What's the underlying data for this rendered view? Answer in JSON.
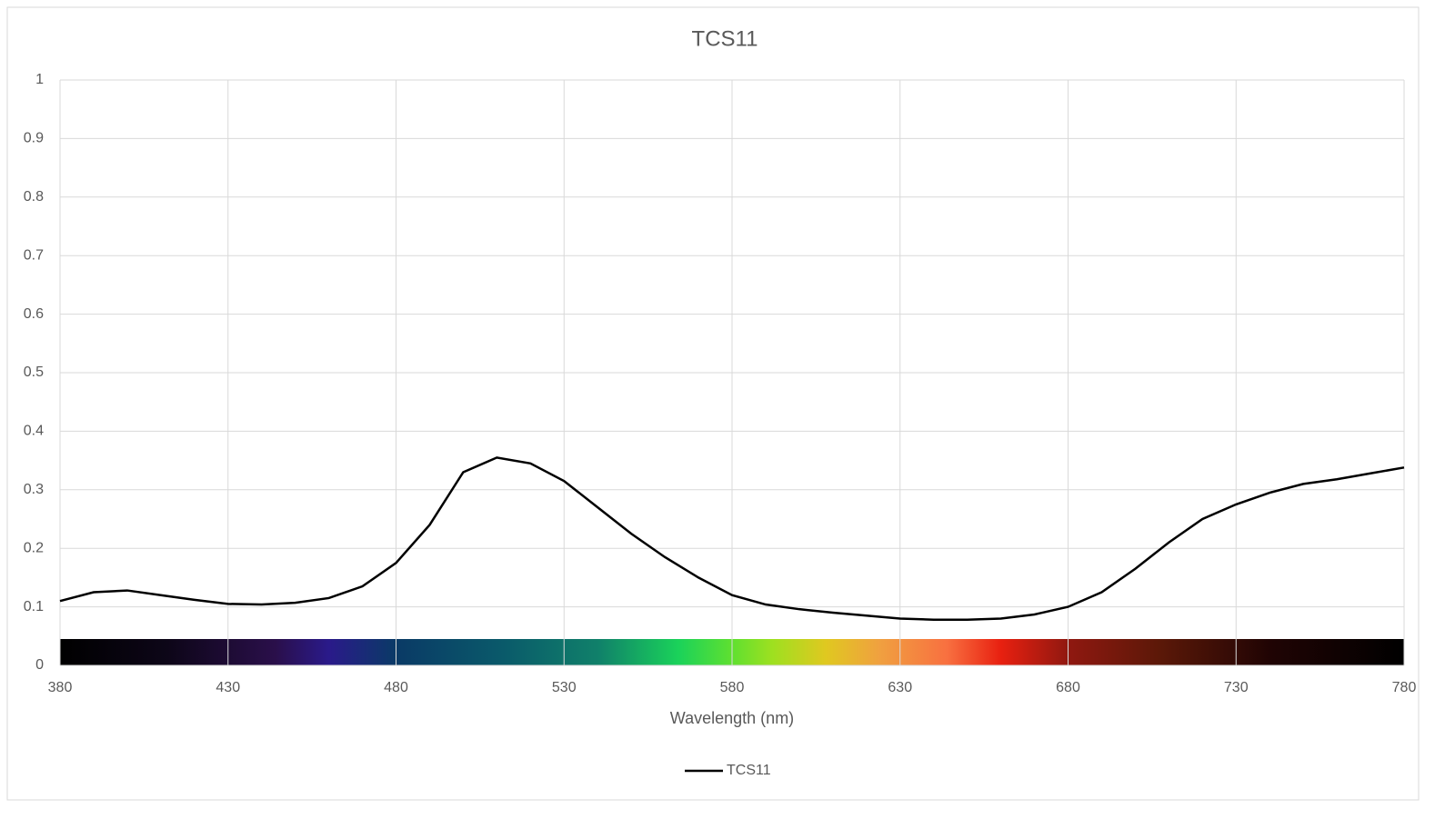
{
  "chart_data": {
    "type": "line",
    "title": "TCS11",
    "x_label": "Wavelength (nm)",
    "x": [
      380,
      390,
      400,
      410,
      420,
      430,
      440,
      450,
      460,
      470,
      480,
      490,
      500,
      510,
      520,
      530,
      540,
      550,
      560,
      570,
      580,
      590,
      600,
      610,
      620,
      630,
      640,
      650,
      660,
      670,
      680,
      690,
      700,
      710,
      720,
      730,
      740,
      750,
      760,
      770,
      780
    ],
    "series": [
      {
        "name": "TCS11",
        "color": "#000000",
        "values": [
          0.11,
          0.125,
          0.128,
          0.12,
          0.112,
          0.105,
          0.104,
          0.107,
          0.115,
          0.135,
          0.175,
          0.24,
          0.33,
          0.355,
          0.345,
          0.315,
          0.27,
          0.225,
          0.185,
          0.15,
          0.12,
          0.104,
          0.096,
          0.09,
          0.085,
          0.08,
          0.078,
          0.078,
          0.08,
          0.087,
          0.1,
          0.125,
          0.165,
          0.21,
          0.25,
          0.275,
          0.295,
          0.31,
          0.318,
          0.328,
          0.338
        ]
      }
    ],
    "xlim": [
      380,
      780
    ],
    "xticks": [
      380,
      430,
      480,
      530,
      580,
      630,
      680,
      730,
      780
    ],
    "ylim": [
      0,
      1
    ],
    "yticks": [
      0,
      0.1,
      0.2,
      0.3,
      0.4,
      0.5,
      0.6,
      0.7,
      0.8,
      0.9,
      1
    ],
    "grid": true,
    "legend": "bottom"
  }
}
